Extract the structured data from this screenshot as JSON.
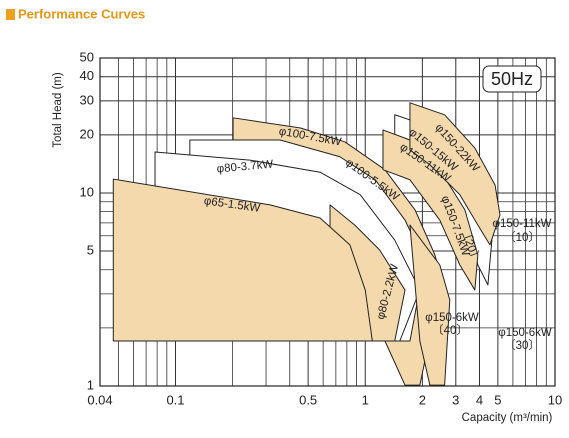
{
  "chart_data": {
    "type": "area",
    "title": "Performance Curves",
    "xlabel": "Capacity (m³/min)",
    "ylabel": "Total Head (m)",
    "badge": "50Hz",
    "xscale": "log",
    "yscale": "log",
    "xlim": [
      0.04,
      10
    ],
    "ylim": [
      1,
      50
    ],
    "xticks": [
      0.04,
      0.1,
      0.5,
      1,
      2,
      3,
      4,
      5,
      10
    ],
    "yticks": [
      1,
      5,
      10,
      20,
      30,
      40,
      50
    ],
    "xminor": [
      0.05,
      0.06,
      0.07,
      0.08,
      0.09,
      0.2,
      0.3,
      0.4,
      0.6,
      0.7,
      0.8,
      0.9,
      6,
      7,
      8,
      9
    ],
    "yminor": [
      2,
      3,
      4,
      6,
      7,
      8,
      9
    ],
    "grid": true,
    "series": [
      {
        "color": "#f4d9ad",
        "x": [
          0.201,
          0.456,
          0.78,
          1.27,
          1.83,
          2.33,
          2.53,
          1.94,
          1.62,
          1.27,
          0.201
        ],
        "values": [
          24.5,
          21.7,
          18.4,
          13.2,
          8.17,
          4.77,
          3.54,
          1.01,
          1.01,
          1.71,
          1.71
        ]
      },
      {
        "color": "#ffffff",
        "x": [
          0.119,
          0.356,
          0.735,
          1.13,
          1.62,
          2.06,
          1.72,
          0.119
        ],
        "values": [
          18.8,
          18.8,
          15.4,
          11.7,
          7.24,
          4.39,
          1.71,
          1.71
        ]
      },
      {
        "color": "#ffffff",
        "x": [
          0.078,
          0.246,
          0.578,
          0.94,
          1.43,
          1.94,
          1.52,
          0.078
        ],
        "values": [
          16.3,
          14.8,
          12.8,
          9.8,
          5.7,
          3.14,
          1.71,
          1.71
        ]
      },
      {
        "color": "#f4d9ad",
        "x": [
          0.652,
          0.88,
          1.19,
          1.62,
          1.43,
          0.652
        ],
        "values": [
          8.67,
          6.82,
          5.07,
          3.14,
          1.71,
          1.71
        ]
      },
      {
        "color": "#f4d9ad",
        "x": [
          0.047,
          0.315,
          0.578,
          0.83,
          1.0,
          1.09,
          0.047
        ],
        "values": [
          11.8,
          8.67,
          7.42,
          5.38,
          3.14,
          1.71,
          1.71
        ]
      },
      {
        "color": "#f4d9ad",
        "x": [
          1.72,
          2.47,
          2.79,
          2.62,
          2.19,
          1.94
        ],
        "values": [
          6.82,
          4.24,
          2.79,
          1.01,
          1.01,
          1.71
        ]
      },
      {
        "color": "#ffffff",
        "x": [
          1.43,
          2.06,
          2.96,
          4.02,
          4.65,
          4.43,
          3.92,
          3.35,
          2.47,
          1.43
        ],
        "values": [
          25.4,
          22.5,
          15.7,
          9.8,
          5.7,
          3.34,
          4.24,
          7.69,
          12.4,
          16.7
        ]
      },
      {
        "color": "#f4d9ad",
        "x": [
          1.24,
          1.72,
          2.47,
          3.35,
          3.92,
          3.78,
          3.15,
          2.47,
          1.72,
          1.24
        ],
        "values": [
          21.2,
          18.8,
          13.2,
          8.17,
          4.77,
          3.14,
          4.24,
          7.24,
          11.7,
          13.2
        ]
      },
      {
        "color": "#f4d9ad",
        "x": [
          1.72,
          2.62,
          3.78,
          4.83,
          5.13,
          4.54,
          3.92,
          3.15,
          2.19,
          1.72
        ],
        "values": [
          29.3,
          25.4,
          17.1,
          11.0,
          7.69,
          5.38,
          6.82,
          9.8,
          14.0,
          16.7
        ]
      }
    ],
    "annotations": [
      "φ100-7.5kW",
      "φ80-3.7kW",
      "φ100-5.5kW",
      "φ65-1.5kW",
      "φ80-2.2kW",
      "φ150-22kW",
      "φ150-15kW",
      "φ150-11kW",
      "φ150-7.5kW",
      "〔20〕",
      "φ150-11kW",
      "〔10〕",
      "φ150-6kW",
      "〔40〕",
      "φ150-6kW",
      "〔30〕"
    ]
  }
}
